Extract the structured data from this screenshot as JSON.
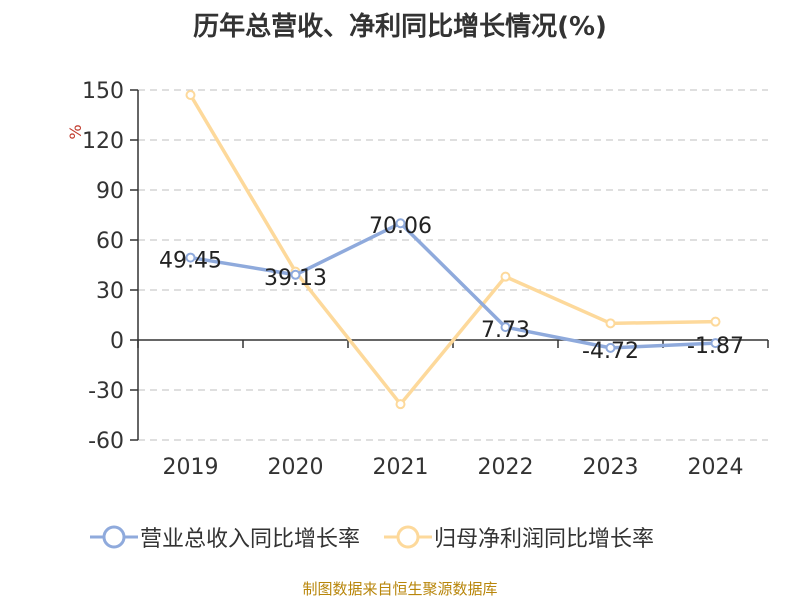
{
  "chart_data": {
    "type": "line",
    "title": "历年总营收、净利同比增长情况(%)",
    "ylabel": "%",
    "xlabel": "",
    "categories": [
      "2019",
      "2020",
      "2021",
      "2022",
      "2023",
      "2024"
    ],
    "ylim": [
      -60,
      150
    ],
    "yticks": [
      150,
      120,
      90,
      60,
      30,
      0,
      -30,
      -60
    ],
    "grid": true,
    "legend_position": "bottom",
    "series": [
      {
        "name": "营业总收入同比增长率",
        "color": "#8faadc",
        "values": [
          49.45,
          39.13,
          70.06,
          7.73,
          -4.72,
          -1.87
        ],
        "data_labels": [
          "49.45",
          "39.13",
          "70.06",
          "7.73",
          "-4.72",
          "-1.87"
        ]
      },
      {
        "name": "归母净利润同比增长率",
        "color": "#fdd99b",
        "values": [
          147,
          41,
          -38.5,
          38,
          10,
          11
        ]
      }
    ]
  },
  "source_note": "制图数据来自恒生聚源数据库"
}
